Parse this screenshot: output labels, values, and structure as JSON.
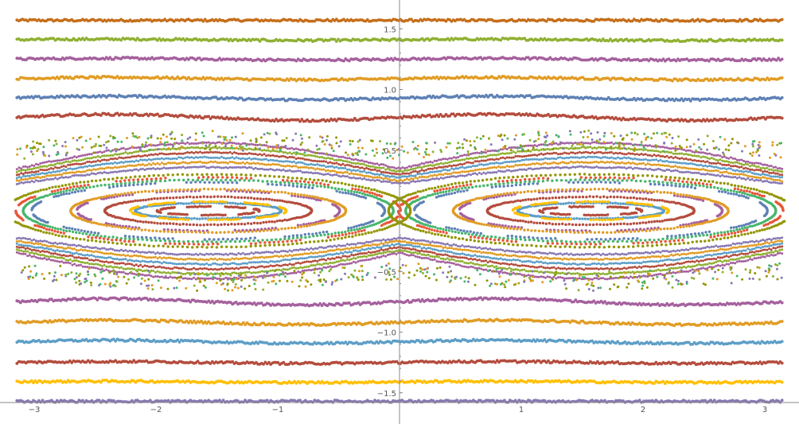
{
  "chart_data": {
    "type": "scatter",
    "title": "",
    "xlabel": "",
    "ylabel": "",
    "xlim": [
      -3.14159,
      3.14159
    ],
    "ylim": [
      -1.57,
      1.65
    ],
    "grid": false,
    "legend": "none",
    "x_ticks": [
      {
        "value": -3,
        "label": "−3"
      },
      {
        "value": -2,
        "label": "−2"
      },
      {
        "value": -1,
        "label": "−1"
      },
      {
        "value": 1,
        "label": "1"
      },
      {
        "value": 2,
        "label": "2"
      },
      {
        "value": 3,
        "label": "3"
      }
    ],
    "y_ticks": [
      {
        "value": -1.5,
        "label": "−1.5"
      },
      {
        "value": -1.0,
        "label": "−1.0"
      },
      {
        "value": -0.5,
        "label": "−0.5"
      },
      {
        "value": 0.5,
        "label": "0.5"
      },
      {
        "value": 1.0,
        "label": "1.0"
      },
      {
        "value": 1.5,
        "label": "1.5"
      }
    ],
    "series_colors": [
      "#5e81b5",
      "#e19c24",
      "#8fb032",
      "#eb6235",
      "#8778b3",
      "#c56e1a",
      "#5d9ec7",
      "#ffbf00",
      "#a5609d",
      "#929600",
      "#e95536",
      "#6685d9",
      "#f89f13",
      "#bc5b80",
      "#47b66d",
      "#b44c3d"
    ],
    "rotational_bands": [
      {
        "y": 1.57,
        "color": "#c56e1a",
        "amplitude": 0.0
      },
      {
        "y": 1.41,
        "color": "#8fb032",
        "amplitude": 0.005
      },
      {
        "y": 1.25,
        "color": "#a5609d",
        "amplitude": 0.007
      },
      {
        "y": 1.09,
        "color": "#e19c24",
        "amplitude": 0.01
      },
      {
        "y": 0.93,
        "color": "#5e81b5",
        "amplitude": 0.015
      },
      {
        "y": 0.77,
        "color": "#b44c3d",
        "amplitude": 0.025
      },
      {
        "y": -0.75,
        "color": "#a5609d",
        "amplitude": 0.025
      },
      {
        "y": -0.92,
        "color": "#e19c24",
        "amplitude": 0.018
      },
      {
        "y": -1.08,
        "color": "#5d9ec7",
        "amplitude": 0.013
      },
      {
        "y": -1.25,
        "color": "#b44c3d",
        "amplitude": 0.008
      },
      {
        "y": -1.41,
        "color": "#ffbf00",
        "amplitude": 0.005
      },
      {
        "y": -1.57,
        "color": "#8778b3",
        "amplitude": 0.0
      }
    ],
    "island_orbits": [
      {
        "rx": 0.42,
        "ry": 0.035,
        "color": "#b44c3d"
      },
      {
        "rx": 0.6,
        "ry": 0.065,
        "color": "#5d9ec7"
      },
      {
        "rx": 0.64,
        "ry": 0.075,
        "color": "#ffbf00"
      },
      {
        "rx": 0.85,
        "ry": 0.115,
        "color": "#b44c3d"
      },
      {
        "rx": 1.08,
        "ry": 0.165,
        "color": "#a5609d"
      },
      {
        "rx": 1.13,
        "ry": 0.178,
        "color": "#e19c24"
      },
      {
        "rx": 1.45,
        "ry": 0.235,
        "color": "#5e81b5"
      },
      {
        "rx": 1.52,
        "ry": 0.255,
        "color": "#47b66d"
      },
      {
        "rx": 1.58,
        "ry": 0.275,
        "color": "#e95536"
      },
      {
        "rx": 1.66,
        "ry": 0.3,
        "color": "#929600"
      }
    ],
    "separatrix_layers": [
      {
        "a": 0.36,
        "color": "#8778b3"
      },
      {
        "a": 0.4,
        "color": "#e19c24"
      },
      {
        "a": 0.44,
        "color": "#5d9ec7"
      },
      {
        "a": 0.48,
        "color": "#b44c3d"
      },
      {
        "a": 0.52,
        "color": "#8fb032"
      },
      {
        "a": 0.56,
        "color": "#a5609d"
      }
    ],
    "chaotic_layer": {
      "inner": 0.5,
      "outer": 0.66,
      "colors": [
        "#929600",
        "#8fb032",
        "#8778b3",
        "#e19c24",
        "#47b66d"
      ]
    }
  }
}
